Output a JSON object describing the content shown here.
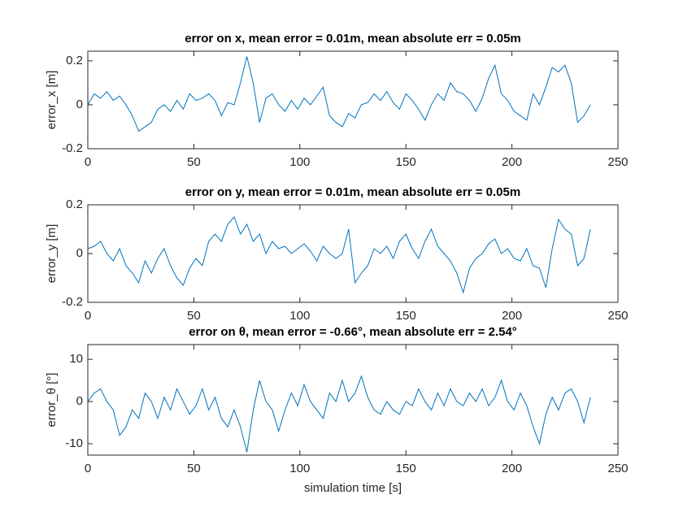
{
  "chart_data": [
    {
      "type": "line",
      "title": "error on x, mean error = 0.01m, mean absolute err = 0.05m",
      "ylabel": "error_x [m]",
      "xlim": [
        0,
        250
      ],
      "xticks": [
        0,
        50,
        100,
        150,
        200,
        250
      ],
      "ylim": [
        -0.2,
        0.244
      ],
      "yticks": [
        -0.2,
        0,
        0.2
      ],
      "x": [
        0,
        3,
        6,
        9,
        12,
        15,
        18,
        21,
        24,
        27,
        30,
        33,
        36,
        39,
        42,
        45,
        48,
        51,
        54,
        57,
        60,
        63,
        66,
        69,
        72,
        75,
        78,
        81,
        84,
        87,
        90,
        93,
        96,
        99,
        102,
        105,
        108,
        111,
        114,
        117,
        120,
        123,
        126,
        129,
        132,
        135,
        138,
        141,
        144,
        147,
        150,
        153,
        156,
        159,
        162,
        165,
        168,
        171,
        174,
        177,
        180,
        183,
        186,
        189,
        192,
        195,
        198,
        201,
        204,
        207,
        210,
        213,
        216,
        219,
        222,
        225,
        228,
        231,
        234,
        237
      ],
      "series": [
        {
          "name": "error_x",
          "color": "#0072bd",
          "values": [
            0.0,
            0.05,
            0.03,
            0.06,
            0.02,
            0.04,
            0.0,
            -0.05,
            -0.12,
            -0.1,
            -0.08,
            -0.02,
            0.0,
            -0.03,
            0.02,
            -0.02,
            0.05,
            0.02,
            0.03,
            0.05,
            0.02,
            -0.05,
            0.01,
            0.0,
            0.1,
            0.22,
            0.1,
            -0.08,
            0.03,
            0.05,
            0.0,
            -0.03,
            0.02,
            -0.02,
            0.03,
            0.0,
            0.04,
            0.08,
            -0.05,
            -0.08,
            -0.1,
            -0.04,
            -0.06,
            0.0,
            0.01,
            0.05,
            0.02,
            0.06,
            0.01,
            -0.02,
            0.05,
            0.02,
            -0.02,
            -0.07,
            0.0,
            0.05,
            0.02,
            0.1,
            0.06,
            0.05,
            0.02,
            -0.03,
            0.03,
            0.12,
            0.18,
            0.05,
            0.02,
            -0.03,
            -0.05,
            -0.07,
            0.05,
            0.0,
            0.08,
            0.17,
            0.15,
            0.18,
            0.1,
            -0.08,
            -0.05,
            0.0
          ]
        }
      ]
    },
    {
      "type": "line",
      "title": "error on y, mean error = 0.01m, mean absolute err = 0.05m",
      "ylabel": "error_y [m]",
      "xlim": [
        0,
        250
      ],
      "xticks": [
        0,
        50,
        100,
        150,
        200,
        250
      ],
      "ylim": [
        -0.2,
        0.2
      ],
      "yticks": [
        -0.2,
        0,
        0.2
      ],
      "x": [
        0,
        3,
        6,
        9,
        12,
        15,
        18,
        21,
        24,
        27,
        30,
        33,
        36,
        39,
        42,
        45,
        48,
        51,
        54,
        57,
        60,
        63,
        66,
        69,
        72,
        75,
        78,
        81,
        84,
        87,
        90,
        93,
        96,
        99,
        102,
        105,
        108,
        111,
        114,
        117,
        120,
        123,
        126,
        129,
        132,
        135,
        138,
        141,
        144,
        147,
        150,
        153,
        156,
        159,
        162,
        165,
        168,
        171,
        174,
        177,
        180,
        183,
        186,
        189,
        192,
        195,
        198,
        201,
        204,
        207,
        210,
        213,
        216,
        219,
        222,
        225,
        228,
        231,
        234,
        237
      ],
      "series": [
        {
          "name": "error_y",
          "color": "#0072bd",
          "values": [
            0.02,
            0.03,
            0.05,
            0.0,
            -0.03,
            0.02,
            -0.05,
            -0.08,
            -0.12,
            -0.03,
            -0.08,
            -0.02,
            0.02,
            -0.05,
            -0.1,
            -0.13,
            -0.06,
            -0.02,
            -0.05,
            0.05,
            0.08,
            0.05,
            0.12,
            0.15,
            0.08,
            0.12,
            0.05,
            0.08,
            0.0,
            0.05,
            0.02,
            0.03,
            0.0,
            0.02,
            0.04,
            0.01,
            -0.03,
            0.03,
            0.0,
            -0.02,
            0.0,
            0.1,
            -0.12,
            -0.08,
            -0.05,
            0.02,
            0.0,
            0.03,
            -0.02,
            0.05,
            0.08,
            0.02,
            -0.02,
            0.05,
            0.1,
            0.03,
            0.0,
            -0.03,
            -0.08,
            -0.16,
            -0.06,
            -0.02,
            0.0,
            0.04,
            0.06,
            0.0,
            0.02,
            -0.02,
            -0.03,
            0.02,
            -0.05,
            -0.06,
            -0.14,
            0.02,
            0.14,
            0.1,
            0.08,
            -0.05,
            -0.02,
            0.1
          ]
        }
      ]
    },
    {
      "type": "line",
      "title": "error on θ, mean error = -0.66°, mean absolute err = 2.54°",
      "ylabel": "error_θ [°]",
      "xlabel": "simulation time [s]",
      "xlim": [
        0,
        250
      ],
      "xticks": [
        0,
        50,
        100,
        150,
        200,
        250
      ],
      "ylim": [
        -12.7,
        13.5
      ],
      "yticks": [
        -10,
        0,
        10
      ],
      "x": [
        0,
        3,
        6,
        9,
        12,
        15,
        18,
        21,
        24,
        27,
        30,
        33,
        36,
        39,
        42,
        45,
        48,
        51,
        54,
        57,
        60,
        63,
        66,
        69,
        72,
        75,
        78,
        81,
        84,
        87,
        90,
        93,
        96,
        99,
        102,
        105,
        108,
        111,
        114,
        117,
        120,
        123,
        126,
        129,
        132,
        135,
        138,
        141,
        144,
        147,
        150,
        153,
        156,
        159,
        162,
        165,
        168,
        171,
        174,
        177,
        180,
        183,
        186,
        189,
        192,
        195,
        198,
        201,
        204,
        207,
        210,
        213,
        216,
        219,
        222,
        225,
        228,
        231,
        234,
        237
      ],
      "series": [
        {
          "name": "error_theta",
          "color": "#0072bd",
          "values": [
            0,
            2,
            3,
            0,
            -2,
            -8,
            -6,
            -2,
            -4,
            2,
            0,
            -4,
            1,
            -2,
            3,
            0,
            -3,
            -1,
            3,
            -2,
            1,
            -4,
            -6,
            -2,
            -6,
            -12,
            -2,
            5,
            0,
            -2,
            -7,
            -2,
            2,
            -1,
            4,
            0,
            -2,
            -4,
            2,
            0,
            5,
            0,
            2,
            6,
            1,
            -2,
            -3,
            0,
            -2,
            -3,
            0,
            -1,
            3,
            0,
            -2,
            2,
            -1,
            3,
            0,
            -1,
            2,
            0,
            3,
            -1,
            1,
            5,
            0,
            -2,
            2,
            -1,
            -6,
            -10,
            -3,
            1,
            -2,
            2,
            3,
            0,
            -5,
            1
          ]
        }
      ]
    }
  ]
}
